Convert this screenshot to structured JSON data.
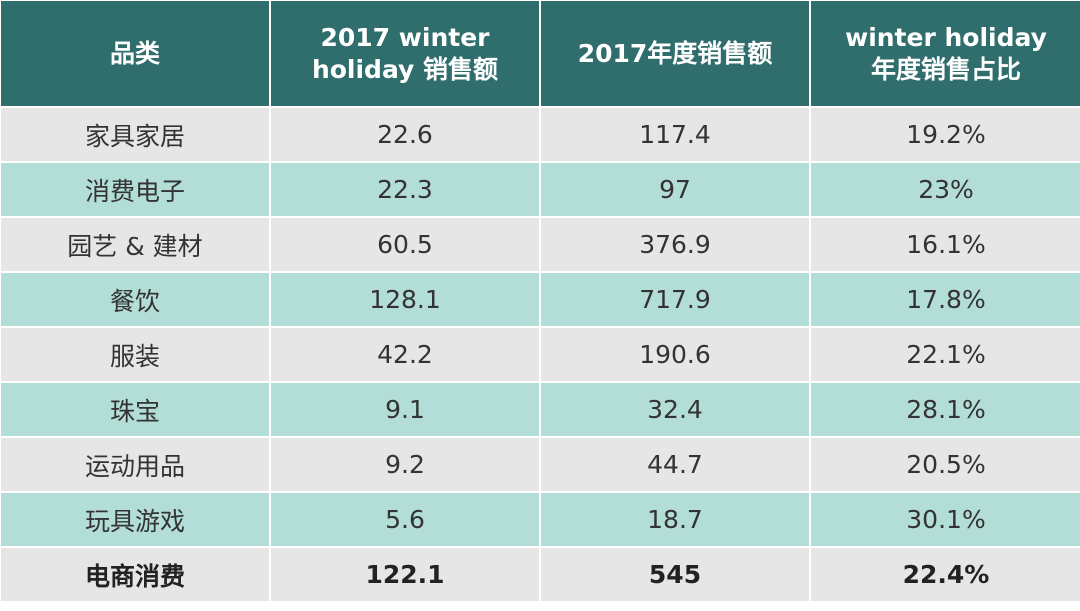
{
  "table": {
    "header": [
      [
        "品类"
      ],
      [
        "2017 winter",
        "holiday 销售额"
      ],
      [
        "2017年度销售额"
      ],
      [
        "winter holiday",
        "年度销售占比"
      ]
    ],
    "rows": [
      [
        "家具家居",
        "22.6",
        "117.4",
        "19.2%"
      ],
      [
        "消费电子",
        "22.3",
        "97",
        "23%"
      ],
      [
        "园艺 & 建材",
        "60.5",
        "376.9",
        "16.1%"
      ],
      [
        "餐饮",
        "128.1",
        "717.9",
        "17.8%"
      ],
      [
        "服装",
        "42.2",
        "190.6",
        "22.1%"
      ],
      [
        "珠宝",
        "9.1",
        "32.4",
        "28.1%"
      ],
      [
        "运动用品",
        "9.2",
        "44.7",
        "20.5%"
      ],
      [
        "玩具游戏",
        "5.6",
        "18.7",
        "30.1%"
      ],
      [
        "电商消费",
        "122.1",
        "545",
        "22.4%"
      ]
    ]
  }
}
